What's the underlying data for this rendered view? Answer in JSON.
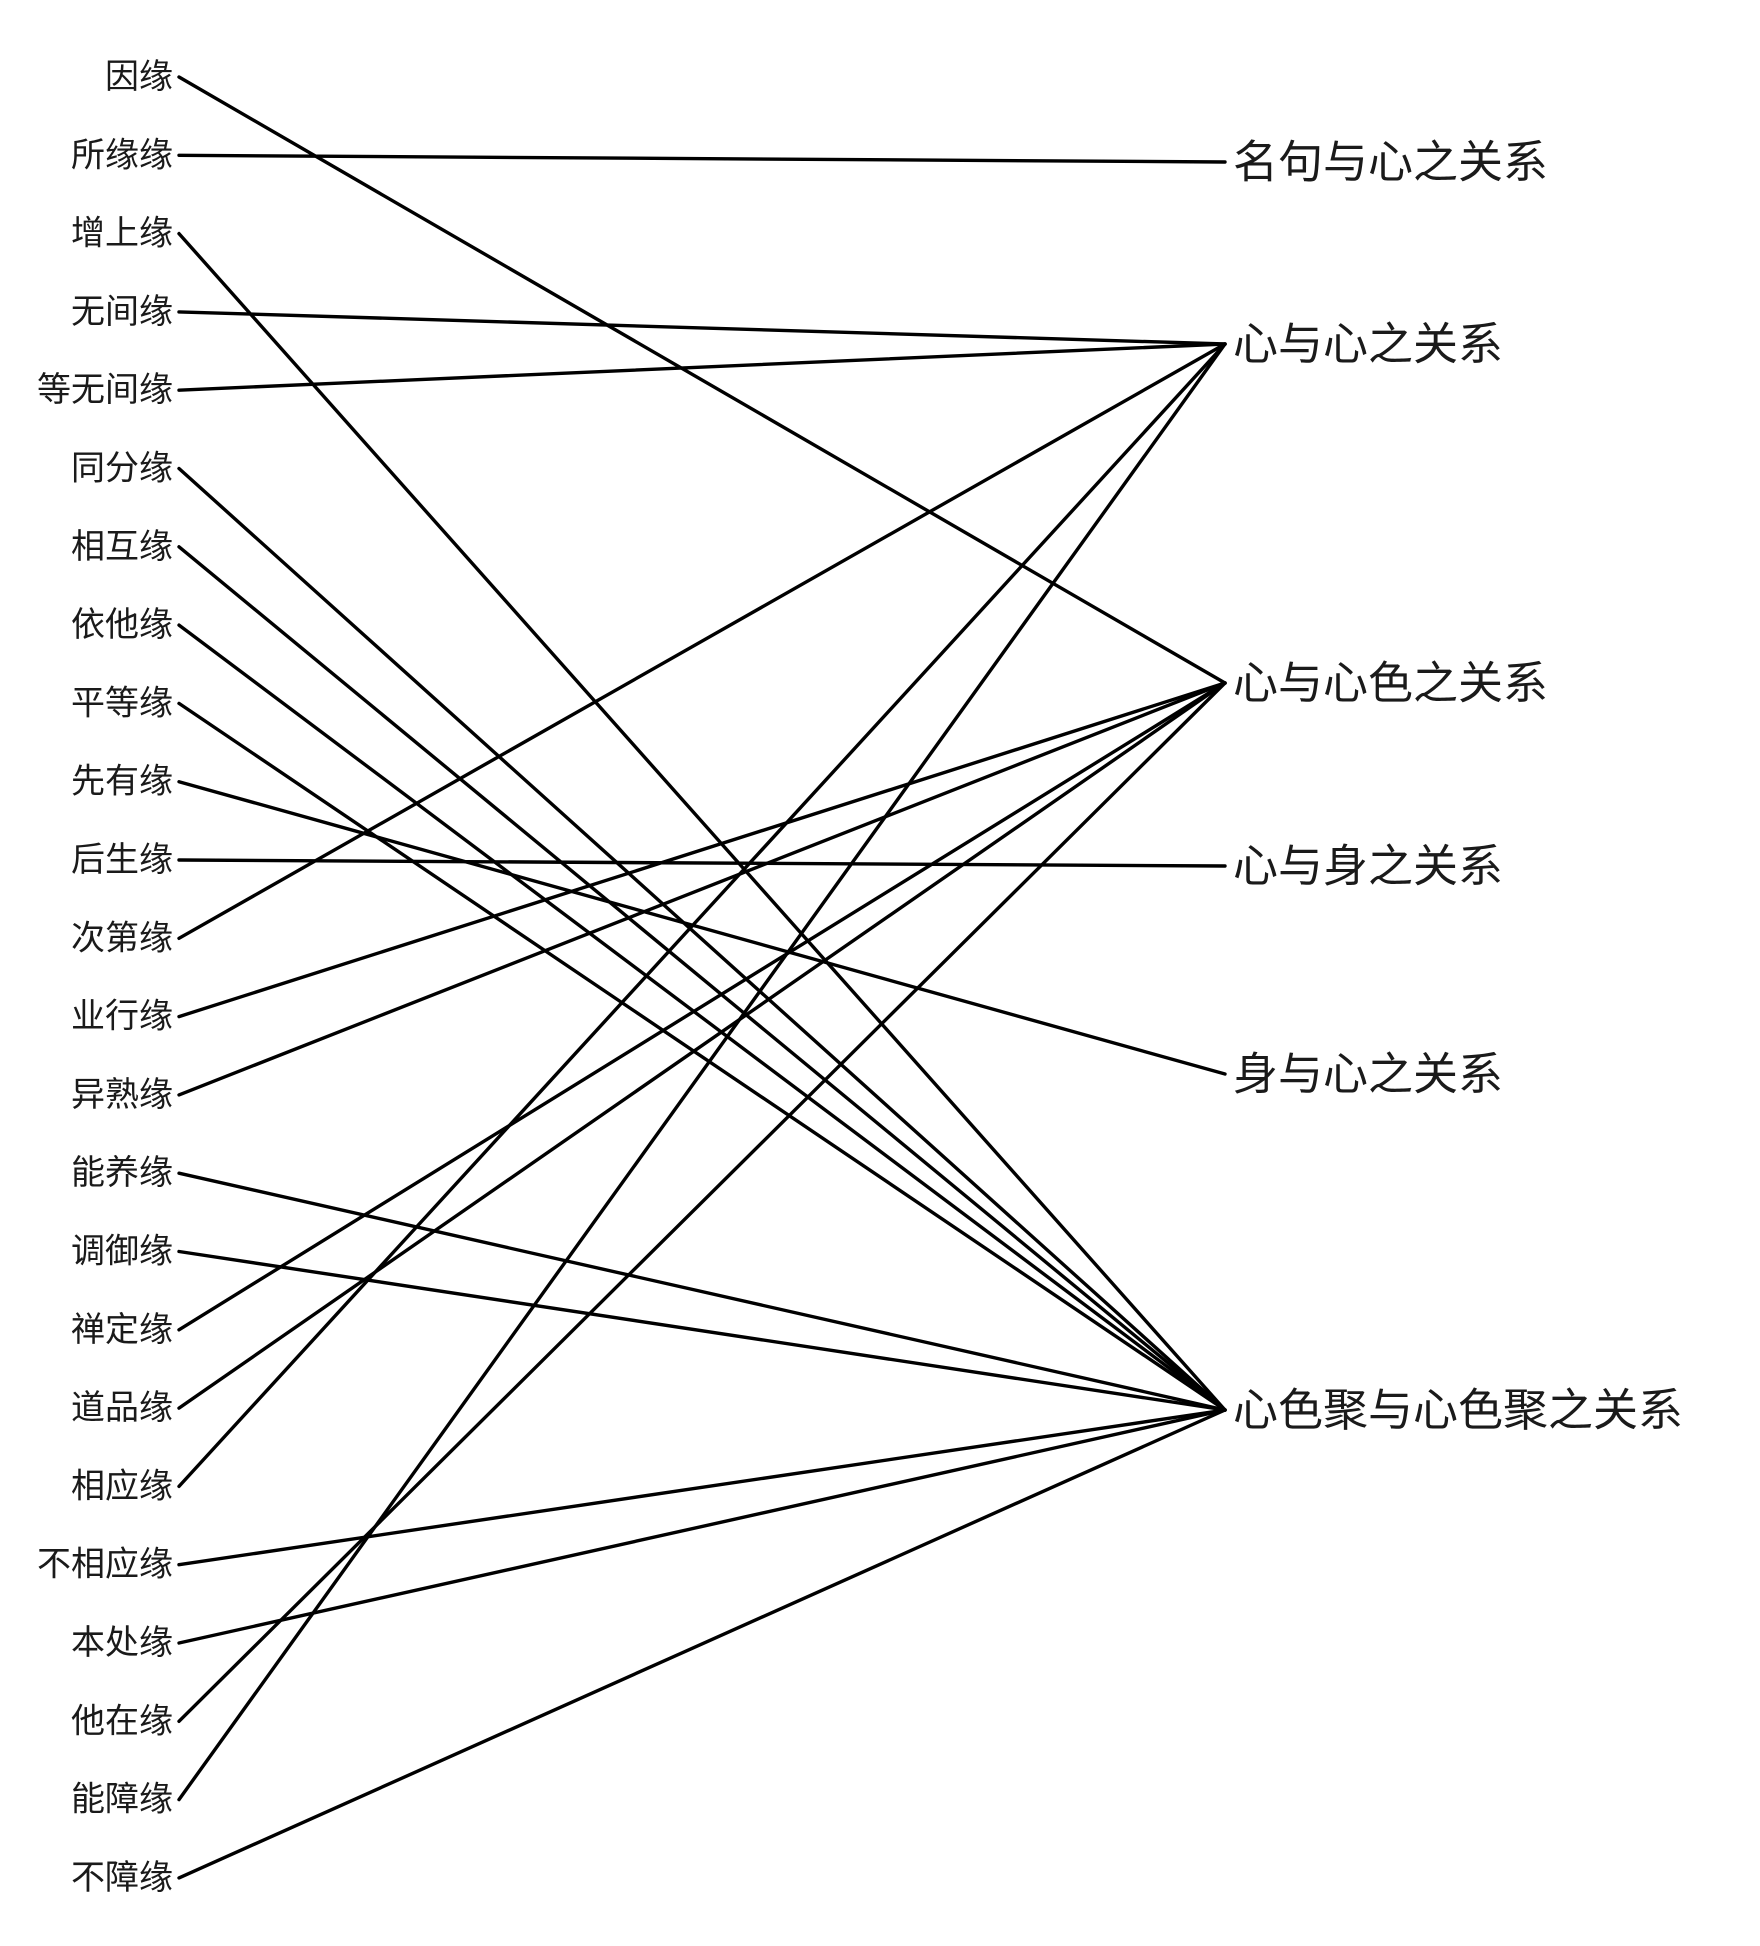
{
  "diagram": {
    "type": "bipartite-connection-diagram",
    "line_color": "#000000",
    "text_color": "#1a1a1a",
    "left_nodes": [
      "因缘",
      "所缘缘",
      "增上缘",
      "无间缘",
      "等无间缘",
      "同分缘",
      "相互缘",
      "依他缘",
      "平等缘",
      "先有缘",
      "后生缘",
      "次第缘",
      "业行缘",
      "异熟缘",
      "能养缘",
      "调御缘",
      "禅定缘",
      "道品缘",
      "相应缘",
      "不相应缘",
      "本处缘",
      "他在缘",
      "能障缘",
      "不障缘"
    ],
    "right_nodes": [
      "名句与心之关系",
      "心与心之关系",
      "心与心色之关系",
      "心与身之关系",
      "身与心之关系",
      "心色聚与心色聚之关系"
    ],
    "edges": [
      {
        "from": "因缘",
        "to": "心与心色之关系"
      },
      {
        "from": "所缘缘",
        "to": "名句与心之关系"
      },
      {
        "from": "增上缘",
        "to": "心色聚与心色聚之关系"
      },
      {
        "from": "无间缘",
        "to": "心与心之关系"
      },
      {
        "from": "等无间缘",
        "to": "心与心之关系"
      },
      {
        "from": "同分缘",
        "to": "心色聚与心色聚之关系"
      },
      {
        "from": "相互缘",
        "to": "心色聚与心色聚之关系"
      },
      {
        "from": "依他缘",
        "to": "心色聚与心色聚之关系"
      },
      {
        "from": "平等缘",
        "to": "心色聚与心色聚之关系"
      },
      {
        "from": "先有缘",
        "to": "身与心之关系"
      },
      {
        "from": "后生缘",
        "to": "心与身之关系"
      },
      {
        "from": "次第缘",
        "to": "心与心之关系"
      },
      {
        "from": "业行缘",
        "to": "心与心色之关系"
      },
      {
        "from": "异熟缘",
        "to": "心与心色之关系"
      },
      {
        "from": "能养缘",
        "to": "心色聚与心色聚之关系"
      },
      {
        "from": "调御缘",
        "to": "心色聚与心色聚之关系"
      },
      {
        "from": "禅定缘",
        "to": "心与心色之关系"
      },
      {
        "from": "道品缘",
        "to": "心与心色之关系"
      },
      {
        "from": "相应缘",
        "to": "心与心之关系"
      },
      {
        "from": "不相应缘",
        "to": "心色聚与心色聚之关系"
      },
      {
        "from": "本处缘",
        "to": "心色聚与心色聚之关系"
      },
      {
        "from": "他在缘",
        "to": "心与心色之关系"
      },
      {
        "from": "能障缘",
        "to": "心与心之关系"
      },
      {
        "from": "不障缘",
        "to": "心色聚与心色聚之关系"
      }
    ]
  }
}
